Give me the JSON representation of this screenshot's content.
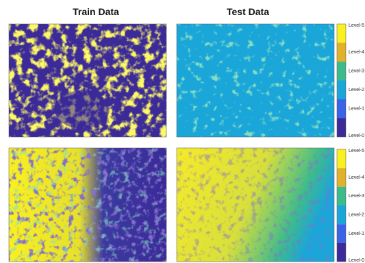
{
  "titles": [
    "Train Data",
    "Test Data"
  ],
  "colorbars": [
    {
      "labels": [
        "Level-5",
        "Level-4",
        "Level-3",
        "Level-2",
        "Level-1",
        "Level-0"
      ]
    },
    {
      "labels": [
        "Level-5",
        "Level-4",
        "Level-3",
        "Level-2",
        "Level-1",
        "Level-0"
      ]
    }
  ]
}
